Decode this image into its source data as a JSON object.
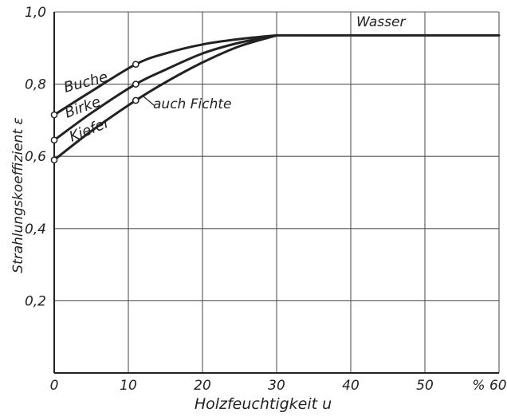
{
  "chart_data": {
    "type": "line",
    "xlabel": "Holzfeuchtigkeit u",
    "ylabel": "Strahlungskoeffizient ε",
    "xlim": [
      0,
      60
    ],
    "ylim": [
      0,
      1.0
    ],
    "x_ticks": [
      "0",
      "10",
      "20",
      "30",
      "40",
      "50",
      "% 60"
    ],
    "y_ticks": [
      "0,2",
      "0,4",
      "0,6",
      "0,8",
      "1,0"
    ],
    "grid": true,
    "series": [
      {
        "name": "Buche",
        "x": [
          0,
          5,
          11,
          15,
          20,
          25,
          30
        ],
        "y": [
          0.715,
          0.78,
          0.855,
          0.885,
          0.91,
          0.925,
          0.935
        ]
      },
      {
        "name": "Birke",
        "x": [
          0,
          5,
          11,
          15,
          20,
          25,
          30
        ],
        "y": [
          0.645,
          0.72,
          0.8,
          0.84,
          0.885,
          0.915,
          0.935
        ]
      },
      {
        "name": "Kiefer",
        "x": [
          0,
          5,
          11,
          15,
          20,
          25,
          30
        ],
        "y": [
          0.59,
          0.67,
          0.755,
          0.805,
          0.86,
          0.905,
          0.935
        ]
      },
      {
        "name": "Wasser",
        "x": [
          30,
          60
        ],
        "y": [
          0.935,
          0.935
        ]
      }
    ],
    "markers": [
      {
        "x": 0,
        "y": 0.715
      },
      {
        "x": 0,
        "y": 0.645
      },
      {
        "x": 0,
        "y": 0.59
      },
      {
        "x": 11,
        "y": 0.855
      },
      {
        "x": 11,
        "y": 0.8
      },
      {
        "x": 11,
        "y": 0.755
      }
    ],
    "annotations": {
      "buche": "Buche",
      "birke": "Birke",
      "kiefer": "Kiefer",
      "fichte": "auch Fichte",
      "wasser": "Wasser"
    }
  }
}
